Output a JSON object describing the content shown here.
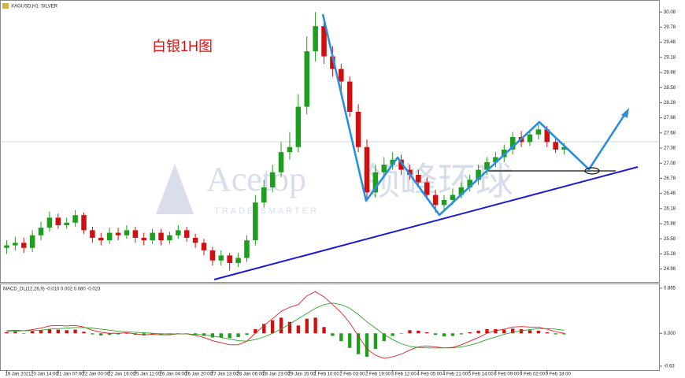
{
  "watermark": {
    "brand": "Acetop",
    "brand_cn": "领峰环球",
    "slogan": "TRADE SMARTER"
  },
  "chart_data": [
    {
      "type": "candlestick",
      "title": "XAGUSD,H1: SILVER",
      "annotation": "白银1H图",
      "categories": [
        "19 Jan 2021",
        null,
        null,
        "20 Jan 14:00",
        null,
        null,
        "21 Jan 07:00",
        null,
        null,
        "22 Jan 00:00",
        null,
        null,
        "22 Jan 16:00",
        null,
        null,
        "25 Jan 11:00",
        null,
        null,
        "26 Jan 04:00",
        null,
        null,
        "26 Jan 20:00",
        null,
        null,
        "27 Jan 13:00",
        null,
        null,
        "28 Jan 06:00",
        null,
        null,
        "28 Jan 23:00",
        null,
        null,
        "29 Jan 15:00",
        null,
        null,
        "1 Feb 10:00",
        null,
        null,
        "2 Feb 03:00",
        null,
        null,
        "2 Feb 19:00",
        null,
        null,
        "3 Feb 12:00",
        null,
        null,
        "4 Feb 05:00",
        null,
        null,
        "4 Feb 21:00",
        null,
        null,
        "5 Feb 14:00",
        null,
        null,
        "8 Feb 09:00",
        null,
        null,
        "9 Feb 02:00",
        null,
        null,
        "9 Feb 18:00",
        null,
        null
      ],
      "open": [
        25.4,
        25.45,
        25.5,
        25.4,
        25.65,
        25.8,
        26.0,
        25.85,
        25.9,
        26.05,
        25.75,
        25.6,
        25.55,
        25.7,
        25.65,
        25.75,
        25.6,
        25.55,
        25.7,
        25.55,
        25.65,
        25.75,
        25.6,
        25.5,
        25.35,
        25.15,
        25.25,
        25.1,
        25.2,
        25.55,
        26.3,
        26.6,
        26.9,
        27.3,
        27.4,
        28.2,
        29.3,
        29.8,
        29.2,
        28.95,
        28.7,
        28.1,
        27.4,
        26.5,
        26.9,
        27.05,
        27.15,
        26.95,
        26.85,
        26.7,
        26.45,
        26.25,
        26.35,
        26.45,
        26.6,
        26.75,
        26.95,
        27.1,
        27.2,
        27.35,
        27.6,
        27.5,
        27.65,
        27.75,
        27.5,
        27.35
      ],
      "high": [
        25.55,
        25.62,
        25.6,
        25.75,
        25.92,
        26.12,
        26.08,
        26.0,
        26.15,
        26.1,
        25.82,
        25.7,
        25.8,
        25.8,
        25.85,
        25.82,
        25.7,
        25.78,
        25.78,
        25.72,
        25.85,
        25.82,
        25.68,
        25.58,
        25.42,
        25.35,
        25.3,
        25.3,
        25.65,
        26.45,
        26.75,
        27.05,
        27.5,
        27.7,
        28.45,
        29.6,
        30.08,
        29.95,
        29.4,
        29.05,
        28.8,
        28.25,
        27.55,
        27.05,
        27.2,
        27.3,
        27.25,
        27.05,
        26.95,
        26.8,
        26.55,
        26.45,
        26.58,
        26.7,
        26.85,
        27.05,
        27.2,
        27.3,
        27.45,
        27.7,
        27.72,
        27.75,
        27.85,
        27.82,
        27.6,
        27.48
      ],
      "low": [
        25.28,
        25.35,
        25.3,
        25.32,
        25.55,
        25.72,
        25.78,
        25.78,
        25.82,
        25.68,
        25.5,
        25.45,
        25.48,
        25.55,
        25.58,
        25.5,
        25.45,
        25.48,
        25.45,
        25.48,
        25.58,
        25.52,
        25.4,
        25.25,
        25.05,
        25.05,
        24.95,
        25.02,
        25.12,
        25.45,
        26.2,
        26.5,
        26.8,
        27.15,
        27.3,
        28.05,
        29.1,
        29.05,
        28.8,
        28.5,
        28.0,
        27.3,
        26.35,
        26.4,
        26.8,
        26.95,
        26.85,
        26.75,
        26.6,
        26.35,
        26.1,
        26.15,
        26.25,
        26.38,
        26.52,
        26.65,
        26.85,
        27.0,
        27.1,
        27.25,
        27.4,
        27.42,
        27.55,
        27.4,
        27.28,
        27.25
      ],
      "close": [
        25.45,
        25.5,
        25.4,
        25.65,
        25.8,
        26.0,
        25.85,
        25.9,
        26.05,
        25.75,
        25.6,
        25.55,
        25.7,
        25.65,
        25.75,
        25.6,
        25.55,
        25.7,
        25.55,
        25.65,
        25.75,
        25.6,
        25.5,
        25.35,
        25.15,
        25.25,
        25.1,
        25.2,
        25.55,
        26.3,
        26.6,
        26.9,
        27.3,
        27.4,
        28.2,
        29.3,
        29.8,
        29.2,
        28.95,
        28.7,
        28.1,
        27.4,
        26.5,
        26.9,
        27.05,
        27.15,
        26.95,
        26.85,
        26.7,
        26.45,
        26.25,
        26.35,
        26.45,
        26.6,
        26.75,
        26.95,
        27.1,
        27.2,
        27.35,
        27.6,
        27.5,
        27.65,
        27.75,
        27.5,
        27.35,
        27.4
      ],
      "up_color": "#1f9d1f",
      "down_color": "#d01010",
      "ylim": [
        24.74,
        30.24
      ],
      "yticks": [
        24.98,
        25.28,
        25.58,
        25.88,
        26.18,
        26.48,
        26.78,
        27.08,
        27.38,
        27.68,
        27.98,
        28.28,
        28.58,
        28.88,
        29.18,
        29.48,
        29.78,
        30.08
      ]
    },
    {
      "type": "macd",
      "title": "MACD_DL(12,26,9) -0.010 0.002 0.080 -0.023",
      "histogram": [
        0.02,
        0.03,
        0.0,
        0.04,
        0.06,
        0.08,
        0.07,
        0.06,
        0.07,
        0.03,
        -0.02,
        -0.04,
        -0.03,
        -0.02,
        -0.01,
        -0.03,
        -0.04,
        -0.02,
        -0.03,
        -0.02,
        0.0,
        -0.01,
        -0.03,
        -0.05,
        -0.08,
        -0.08,
        -0.09,
        -0.07,
        -0.03,
        0.08,
        0.18,
        0.25,
        0.3,
        0.22,
        0.15,
        0.28,
        0.3,
        0.12,
        -0.05,
        -0.15,
        -0.28,
        -0.4,
        -0.45,
        -0.3,
        -0.15,
        -0.05,
        0.0,
        0.06,
        0.05,
        0.02,
        -0.03,
        -0.06,
        -0.05,
        -0.02,
        0.02,
        0.05,
        0.08,
        0.08,
        0.07,
        0.09,
        0.08,
        0.06,
        0.05,
        0.02,
        -0.02,
        -0.02
      ],
      "positive_color": "#d01010",
      "negative_color": "#1f9d1f",
      "series": [
        {
          "color": "#e02020",
          "values": [
            0.05,
            0.06,
            0.05,
            0.07,
            0.1,
            0.14,
            0.15,
            0.14,
            0.15,
            0.12,
            0.06,
            0.02,
            0.0,
            0.0,
            0.01,
            -0.01,
            -0.03,
            -0.02,
            -0.03,
            -0.03,
            -0.01,
            -0.01,
            -0.04,
            -0.08,
            -0.14,
            -0.18,
            -0.22,
            -0.22,
            -0.15,
            0.0,
            0.15,
            0.28,
            0.42,
            0.5,
            0.55,
            0.72,
            0.8,
            0.7,
            0.55,
            0.4,
            0.2,
            -0.05,
            -0.3,
            -0.42,
            -0.48,
            -0.45,
            -0.4,
            -0.32,
            -0.26,
            -0.24,
            -0.26,
            -0.28,
            -0.27,
            -0.22,
            -0.15,
            -0.08,
            0.0,
            0.05,
            0.08,
            0.12,
            0.13,
            0.12,
            0.12,
            0.08,
            0.03,
            0.0
          ]
        },
        {
          "color": "#2aa52a",
          "values": [
            0.03,
            0.04,
            0.05,
            0.05,
            0.06,
            0.08,
            0.09,
            0.1,
            0.11,
            0.11,
            0.1,
            0.08,
            0.06,
            0.04,
            0.03,
            0.02,
            0.01,
            0.0,
            -0.01,
            -0.01,
            -0.01,
            -0.01,
            -0.02,
            -0.03,
            -0.05,
            -0.08,
            -0.11,
            -0.14,
            -0.15,
            -0.12,
            -0.07,
            0.0,
            0.08,
            0.18,
            0.28,
            0.38,
            0.48,
            0.55,
            0.58,
            0.55,
            0.48,
            0.36,
            0.22,
            0.1,
            -0.02,
            -0.12,
            -0.2,
            -0.25,
            -0.27,
            -0.28,
            -0.28,
            -0.28,
            -0.28,
            -0.26,
            -0.23,
            -0.18,
            -0.12,
            -0.07,
            -0.02,
            0.02,
            0.05,
            0.07,
            0.09,
            0.09,
            0.08,
            0.06
          ]
        }
      ],
      "ylim": [
        -0.706,
        0.925
      ],
      "yticks": [
        -0.63,
        {
          "value": 0,
          "label": "0.000"
        },
        0.865
      ]
    }
  ]
}
